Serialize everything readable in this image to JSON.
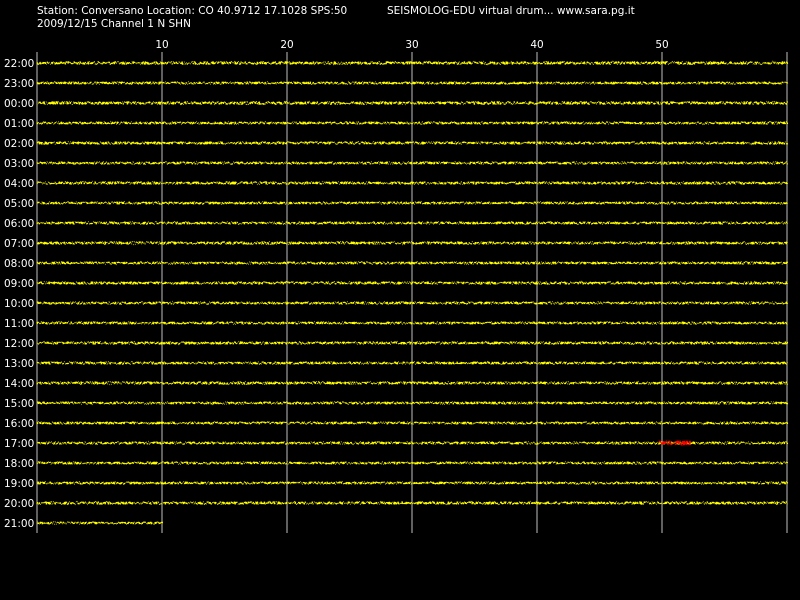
{
  "header": {
    "station_line": "Station: Conversano Location: CO 40.9712 17.1028 SPS:50",
    "program_line": "SEISMOLOG-EDU virtual drum... www.sara.pg.it",
    "date_channel_line": "2009/12/15  Channel 1 N SHN"
  },
  "colors": {
    "background": "#000000",
    "trace": "#ffff00",
    "event_trace": "#ff0000",
    "grid": "#ffffff",
    "text": "#ffffff"
  },
  "chart_data": {
    "type": "line",
    "title": "",
    "xlabel": "",
    "ylabel": "",
    "xlim": [
      0,
      60
    ],
    "x_ticks": [
      10,
      20,
      30,
      40,
      50
    ],
    "x_tick_labels": [
      "10",
      "20",
      "30",
      "40",
      "50"
    ],
    "grid": true,
    "rows": [
      {
        "time": "22:00",
        "end_minute": 60,
        "amplitude": 0.14
      },
      {
        "time": "23:00",
        "end_minute": 60,
        "amplitude": 0.12
      },
      {
        "time": "00:00",
        "end_minute": 60,
        "amplitude": 0.14
      },
      {
        "time": "01:00",
        "end_minute": 60,
        "amplitude": 0.12
      },
      {
        "time": "02:00",
        "end_minute": 60,
        "amplitude": 0.13
      },
      {
        "time": "03:00",
        "end_minute": 60,
        "amplitude": 0.12
      },
      {
        "time": "04:00",
        "end_minute": 60,
        "amplitude": 0.13
      },
      {
        "time": "05:00",
        "end_minute": 60,
        "amplitude": 0.12
      },
      {
        "time": "06:00",
        "end_minute": 60,
        "amplitude": 0.12
      },
      {
        "time": "07:00",
        "end_minute": 60,
        "amplitude": 0.13
      },
      {
        "time": "08:00",
        "end_minute": 60,
        "amplitude": 0.12
      },
      {
        "time": "09:00",
        "end_minute": 60,
        "amplitude": 0.13
      },
      {
        "time": "10:00",
        "end_minute": 60,
        "amplitude": 0.12
      },
      {
        "time": "11:00",
        "end_minute": 60,
        "amplitude": 0.12
      },
      {
        "time": "12:00",
        "end_minute": 60,
        "amplitude": 0.13
      },
      {
        "time": "13:00",
        "end_minute": 60,
        "amplitude": 0.12
      },
      {
        "time": "14:00",
        "end_minute": 60,
        "amplitude": 0.13
      },
      {
        "time": "15:00",
        "end_minute": 60,
        "amplitude": 0.12
      },
      {
        "time": "16:00",
        "end_minute": 60,
        "amplitude": 0.12
      },
      {
        "time": "17:00",
        "end_minute": 60,
        "amplitude": 0.12,
        "event": {
          "start_minute": 49.8,
          "end_minute": 52.2,
          "amplitude": 0.2
        }
      },
      {
        "time": "18:00",
        "end_minute": 60,
        "amplitude": 0.12
      },
      {
        "time": "19:00",
        "end_minute": 60,
        "amplitude": 0.12
      },
      {
        "time": "20:00",
        "end_minute": 60,
        "amplitude": 0.13
      },
      {
        "time": "21:00",
        "end_minute": 10,
        "amplitude": 0.11
      }
    ]
  }
}
